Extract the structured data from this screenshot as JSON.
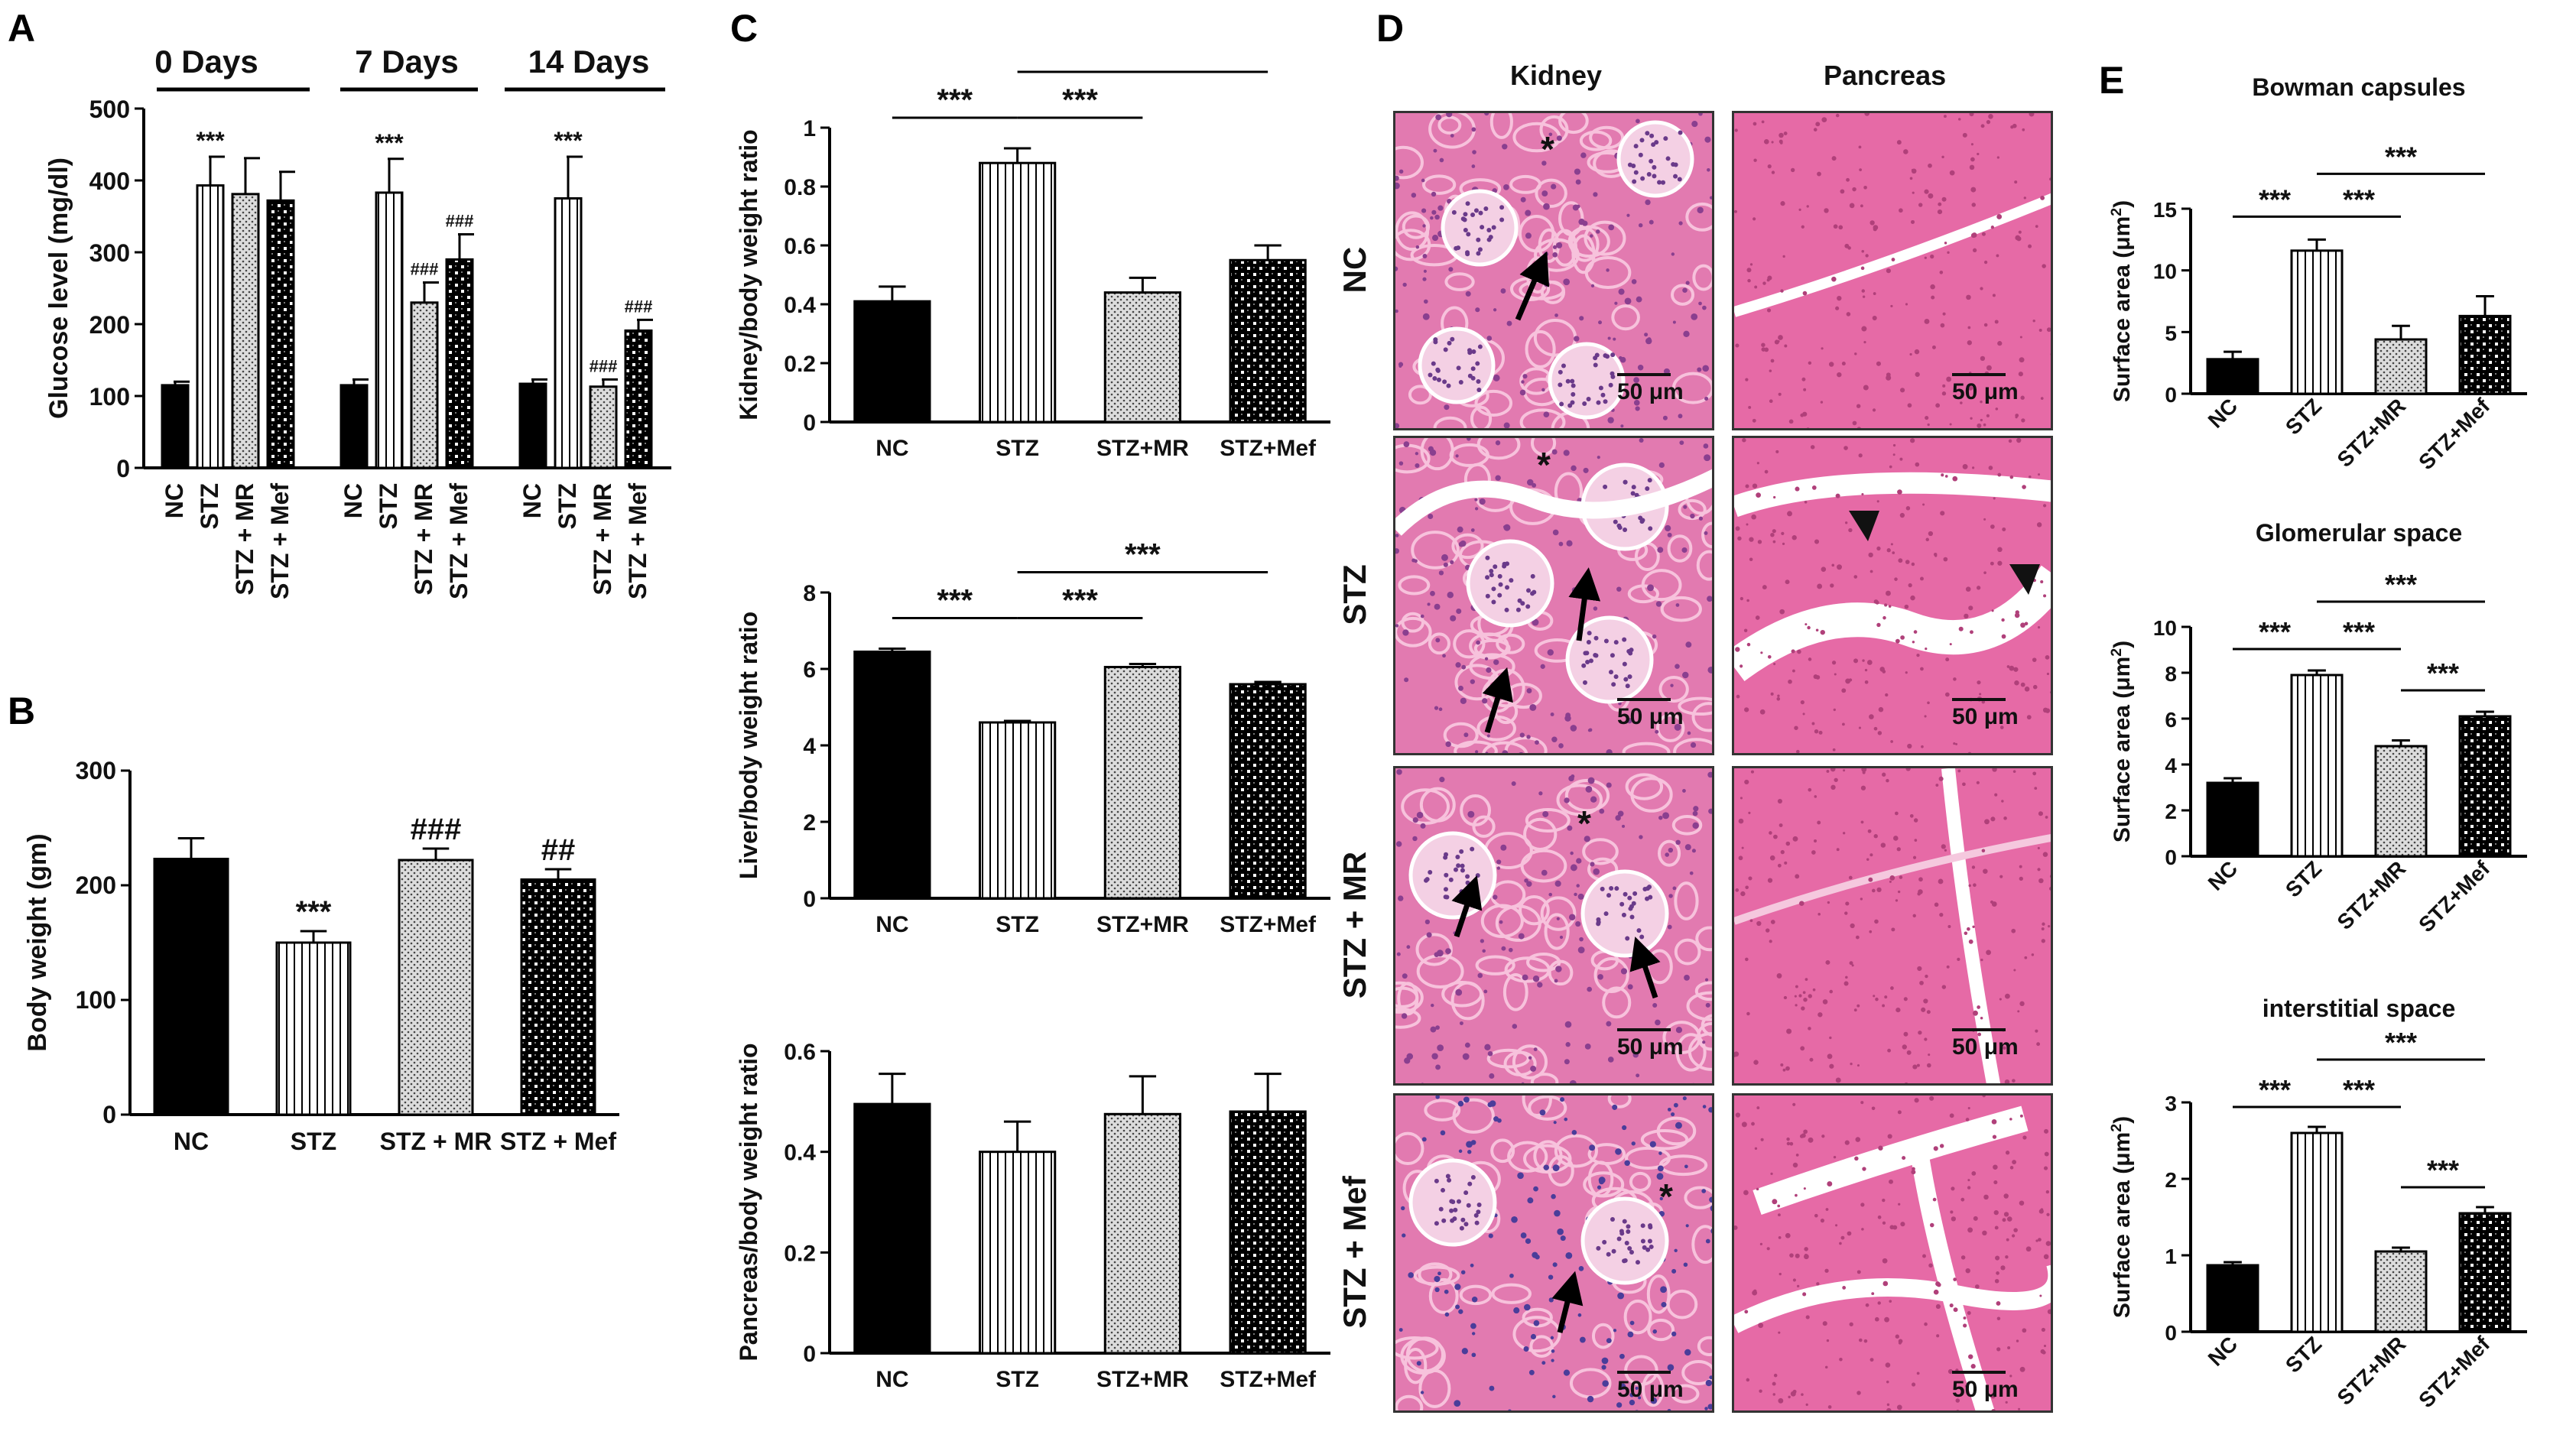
{
  "panel_letters": [
    "A",
    "B",
    "C",
    "D",
    "E"
  ],
  "colors": {
    "NC": "#000000",
    "STZ": "#ffffff",
    "STZ+MR": "#dcdcdc",
    "STZ+Mef": "#000000",
    "tissue_pink": "#e0609a",
    "tissue_light": "#f4a6c8",
    "tissue_purple": "#7a4aa0"
  },
  "panel_A": {
    "group_titles": [
      "0 Days",
      "7 Days",
      "14 Days"
    ],
    "ylabel": "Glucose level (mg/dl)"
  },
  "panel_B": {
    "ylabel": "Body weight (gm)"
  },
  "panel_C": {
    "ylabels": [
      "Kidney/body weight ratio",
      "Liver/body weight ratio",
      "Pancreas/body weight ratio"
    ]
  },
  "panel_D": {
    "column_headers": [
      "Kidney",
      "Pancreas"
    ],
    "row_labels": [
      "NC",
      "STZ",
      "STZ + MR",
      "STZ + Mef"
    ],
    "scale_bar": "50 μm",
    "asterisk": "*"
  },
  "panel_E": {
    "titles": [
      "Bowman capsules",
      "Glomerular space",
      "interstitial space"
    ],
    "ylabel_main": "Surface area (μm",
    "ylabel_sup": "2",
    "ylabel_end": ")"
  },
  "chart_data": [
    {
      "id": "A",
      "type": "bar",
      "groups": [
        "0 Days",
        "7 Days",
        "14 Days"
      ],
      "categories": [
        "NC",
        "STZ",
        "STZ + MR",
        "STZ + Mef"
      ],
      "series": [
        {
          "values": [
            115,
            393,
            381,
            372
          ],
          "errors": [
            5,
            40,
            50,
            40
          ],
          "annotations": [
            "",
            "***",
            "",
            ""
          ]
        },
        {
          "values": [
            115,
            383,
            230,
            290
          ],
          "errors": [
            8,
            47,
            28,
            35
          ],
          "annotations": [
            "",
            "***",
            "###",
            "###"
          ]
        },
        {
          "values": [
            117,
            375,
            113,
            191
          ],
          "errors": [
            6,
            58,
            10,
            15
          ],
          "annotations": [
            "",
            "***",
            "###",
            "###"
          ]
        }
      ],
      "ylim": [
        0,
        500
      ],
      "yticks": [
        0,
        100,
        200,
        300,
        400,
        500
      ],
      "ylabel": "Glucose level (mg/dl)"
    },
    {
      "id": "B",
      "type": "bar",
      "categories": [
        "NC",
        "STZ",
        "STZ + MR",
        "STZ + Mef"
      ],
      "values": [
        223,
        150,
        222,
        205
      ],
      "errors": [
        18,
        10,
        10,
        9
      ],
      "annotations": [
        "",
        "***",
        "###",
        "##"
      ],
      "ylim": [
        0,
        300
      ],
      "yticks": [
        0,
        100,
        200,
        300
      ],
      "ylabel": "Body weight (gm)"
    },
    {
      "id": "C1",
      "type": "bar",
      "categories": [
        "NC",
        "STZ",
        "STZ+MR",
        "STZ+Mef"
      ],
      "values": [
        0.41,
        0.88,
        0.44,
        0.55
      ],
      "errors": [
        0.05,
        0.05,
        0.05,
        0.05
      ],
      "ylim": [
        0,
        1.0
      ],
      "yticks": [
        0.0,
        0.2,
        0.4,
        0.6,
        0.8,
        1.0
      ],
      "ylabel": "Kidney/body weight ratio",
      "brackets": [
        {
          "from": 0,
          "to": 1,
          "label": "***",
          "level": 0
        },
        {
          "from": 1,
          "to": 2,
          "label": "***",
          "level": 0
        },
        {
          "from": 1,
          "to": 3,
          "label": "***",
          "level": 1
        }
      ]
    },
    {
      "id": "C2",
      "type": "bar",
      "categories": [
        "NC",
        "STZ",
        "STZ+MR",
        "STZ+Mef"
      ],
      "values": [
        6.45,
        4.6,
        6.05,
        5.6
      ],
      "errors": [
        0.08,
        0.04,
        0.08,
        0.06
      ],
      "ylim": [
        0,
        8
      ],
      "yticks": [
        0,
        2,
        4,
        6,
        8
      ],
      "ylabel": "Liver/body weight ratio",
      "brackets": [
        {
          "from": 0,
          "to": 1,
          "label": "***",
          "level": 0
        },
        {
          "from": 1,
          "to": 2,
          "label": "***",
          "level": 0
        },
        {
          "from": 1,
          "to": 3,
          "label": "***",
          "level": 1
        }
      ]
    },
    {
      "id": "C3",
      "type": "bar",
      "categories": [
        "NC",
        "STZ",
        "STZ+MR",
        "STZ+Mef"
      ],
      "values": [
        0.495,
        0.4,
        0.475,
        0.48
      ],
      "errors": [
        0.06,
        0.06,
        0.075,
        0.075
      ],
      "ylim": [
        0,
        0.6
      ],
      "yticks": [
        0.0,
        0.2,
        0.4,
        0.6
      ],
      "ylabel": "Pancreas/body weight ratio",
      "brackets": []
    },
    {
      "id": "E1",
      "type": "bar",
      "title": "Bowman capsules",
      "categories": [
        "NC",
        "STZ",
        "STZ+MR",
        "STZ+Mef"
      ],
      "values": [
        2.8,
        11.6,
        4.4,
        6.3
      ],
      "errors": [
        0.6,
        0.9,
        1.1,
        1.6
      ],
      "ylim": [
        0,
        15
      ],
      "yticks": [
        0,
        5,
        10,
        15
      ],
      "brackets": [
        {
          "from": 0,
          "to": 1,
          "label": "***",
          "level": 0
        },
        {
          "from": 1,
          "to": 2,
          "label": "***",
          "level": 0
        },
        {
          "from": 1,
          "to": 3,
          "label": "***",
          "level": 1
        }
      ]
    },
    {
      "id": "E2",
      "type": "bar",
      "title": "Glomerular space",
      "categories": [
        "NC",
        "STZ",
        "STZ+MR",
        "STZ+Mef"
      ],
      "values": [
        3.2,
        7.9,
        4.8,
        6.1
      ],
      "errors": [
        0.2,
        0.2,
        0.25,
        0.2
      ],
      "ylim": [
        0,
        10
      ],
      "yticks": [
        0,
        2,
        4,
        6,
        8,
        10
      ],
      "brackets": [
        {
          "from": 0,
          "to": 1,
          "label": "***",
          "level": 0
        },
        {
          "from": 1,
          "to": 2,
          "label": "***",
          "level": 0
        },
        {
          "from": 2,
          "to": 3,
          "label": "***",
          "level": -1
        },
        {
          "from": 1,
          "to": 3,
          "label": "***",
          "level": 1
        }
      ]
    },
    {
      "id": "E3",
      "type": "bar",
      "title": "interstitial space",
      "categories": [
        "NC",
        "STZ",
        "STZ+MR",
        "STZ+Mef"
      ],
      "values": [
        0.87,
        2.6,
        1.05,
        1.55
      ],
      "errors": [
        0.04,
        0.08,
        0.05,
        0.08
      ],
      "ylim": [
        0,
        3
      ],
      "yticks": [
        0,
        1,
        2,
        3
      ],
      "brackets": [
        {
          "from": 0,
          "to": 1,
          "label": "***",
          "level": 0
        },
        {
          "from": 1,
          "to": 2,
          "label": "***",
          "level": 0
        },
        {
          "from": 2,
          "to": 3,
          "label": "***",
          "level": -1
        },
        {
          "from": 1,
          "to": 3,
          "label": "***",
          "level": 1
        }
      ]
    }
  ]
}
